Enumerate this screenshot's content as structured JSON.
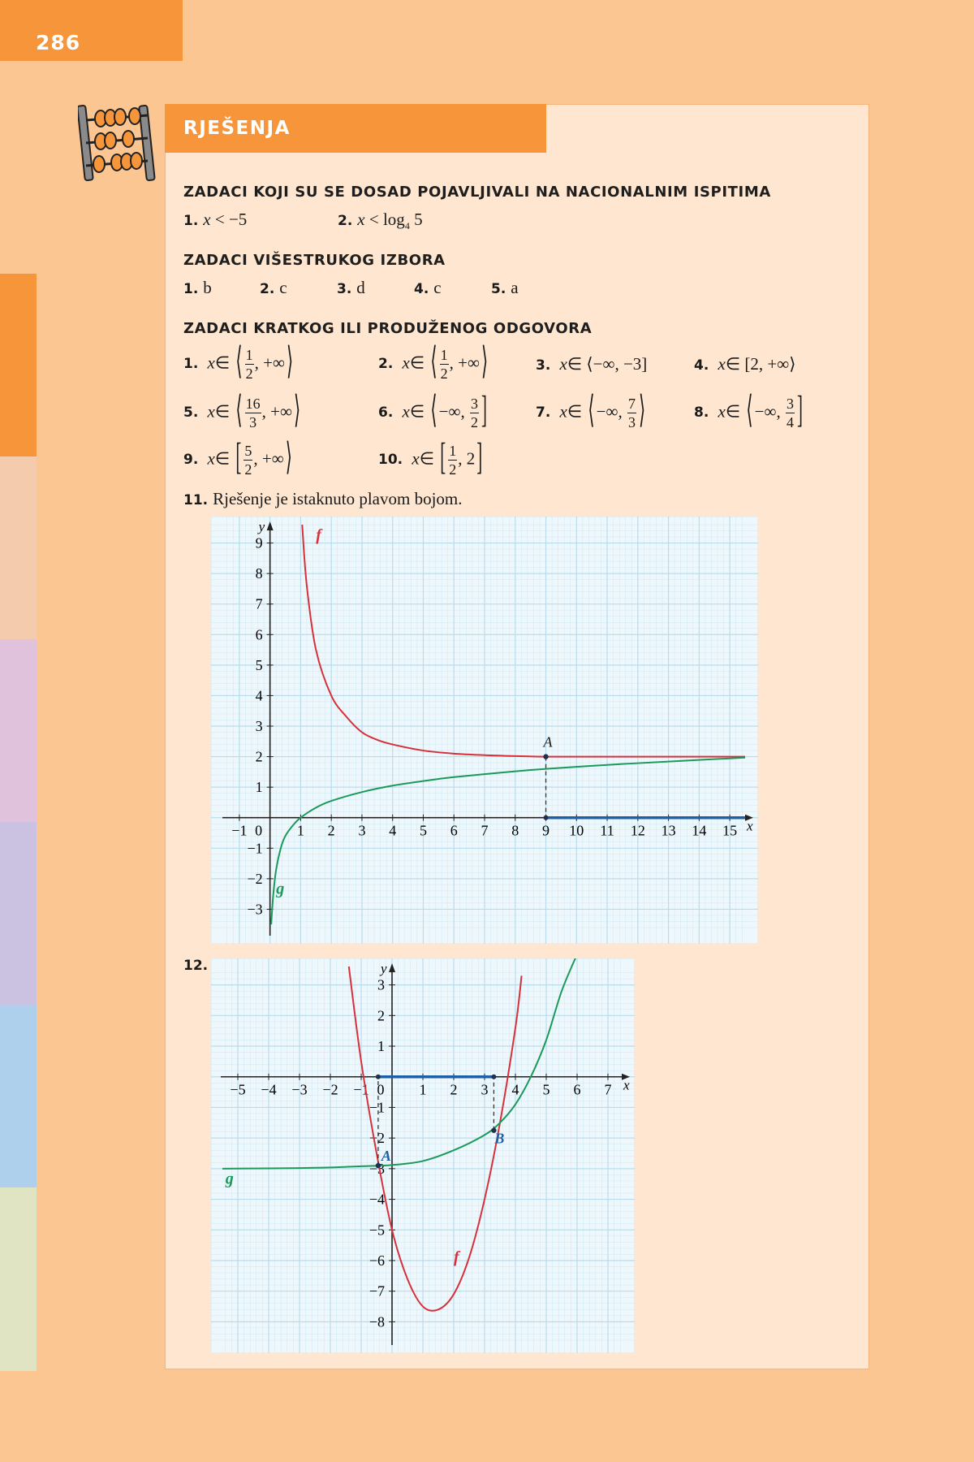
{
  "page_number": "286",
  "title": "RJEŠENJA",
  "sections": {
    "national": {
      "heading": "ZADACI KOJI SU SE DOSAD POJAVLJIVALI NA NACIONALNIM ISPITIMA",
      "a1_num": "1.",
      "a1_var": "x",
      "a1_rest": " < −5",
      "a2_num": "2.",
      "a2_var": "x",
      "a2_rest": " < log",
      "a2_base": "4",
      "a2_arg": " 5"
    },
    "multiple_choice": {
      "heading": "ZADACI VIŠESTRUKOG IZBORA",
      "items": [
        {
          "num": "1.",
          "answer": "b"
        },
        {
          "num": "2.",
          "answer": "c"
        },
        {
          "num": "3.",
          "answer": "d"
        },
        {
          "num": "4.",
          "answer": "c"
        },
        {
          "num": "5.",
          "answer": "a"
        }
      ]
    },
    "short_long": {
      "heading": "ZADACI KRATKOG ILI PRODUŽENOG ODGOVORA",
      "var": "x",
      "in": "∈",
      "items": {
        "q1": {
          "num": "1.",
          "open": "⟨",
          "top": "1",
          "bot": "2",
          "tail": ", +∞",
          "close": "⟩"
        },
        "q2": {
          "num": "2.",
          "open": "⟨",
          "top": "1",
          "bot": "2",
          "tail": ", +∞",
          "close": "⟩"
        },
        "q3": {
          "num": "3.",
          "open": "⟨",
          "body": "−∞, −3",
          "close": "]"
        },
        "q4": {
          "num": "4.",
          "open": "[",
          "body": "2, +∞",
          "close": "⟩"
        },
        "q5": {
          "num": "5.",
          "open": "⟨",
          "top": "16",
          "bot": "3",
          "tail": ", +∞",
          "close": "⟩"
        },
        "q6": {
          "num": "6.",
          "open": "⟨",
          "head": "−∞, ",
          "top": "3",
          "bot": "2",
          "close": "]"
        },
        "q7": {
          "num": "7.",
          "open": "⟨",
          "head": "−∞, ",
          "top": "7",
          "bot": "3",
          "close": "⟩"
        },
        "q8": {
          "num": "8.",
          "open": "⟨",
          "head": "−∞, ",
          "top": "3",
          "bot": "4",
          "close": "]"
        },
        "q9": {
          "num": "9.",
          "open": "[",
          "top": "5",
          "bot": "2",
          "tail": ", +∞",
          "close": "⟩"
        },
        "q10": {
          "num": "10.",
          "open": "[",
          "top": "1",
          "bot": "2",
          "tail": ", 2",
          "close": "]"
        }
      },
      "q11": {
        "num": "11.",
        "text": "Rješenje je istaknuto plavom bojom."
      },
      "q12": {
        "num": "12."
      }
    }
  },
  "chart_data": [
    {
      "type": "line",
      "x_ticks": [
        "−1",
        "0",
        "1",
        "2",
        "3",
        "4",
        "5",
        "6",
        "7",
        "8",
        "9",
        "10",
        "11",
        "12",
        "13",
        "14",
        "15"
      ],
      "y_ticks": [
        "−3",
        "−2",
        "−1",
        "1",
        "2",
        "3",
        "4",
        "5",
        "6",
        "7",
        "8",
        "9"
      ],
      "xlabel": "x",
      "ylabel": "y",
      "xlim": [
        -1.5,
        15.5
      ],
      "ylim": [
        -3.6,
        9.6
      ],
      "grid": true,
      "series": [
        {
          "name": "f",
          "color": "#d6303a",
          "x": [
            1.05,
            1.2,
            1.5,
            2,
            2.5,
            3,
            3.5,
            4,
            5,
            6,
            7,
            8,
            9,
            10,
            12,
            15.5
          ],
          "y": [
            9.6,
            7.6,
            5.5,
            4.0,
            3.3,
            2.8,
            2.55,
            2.4,
            2.2,
            2.1,
            2.05,
            2.02,
            2.0,
            2.0,
            2.0,
            2.0
          ]
        },
        {
          "name": "g",
          "color": "#1a9a5a",
          "x": [
            0.04,
            0.1,
            0.2,
            0.35,
            0.5,
            0.75,
            1,
            1.5,
            2,
            3,
            4,
            5,
            6,
            8,
            9,
            11,
            13,
            15.5
          ],
          "y": [
            -3.5,
            -2.6,
            -1.7,
            -1.0,
            -0.6,
            -0.25,
            0,
            0.33,
            0.55,
            0.84,
            1.05,
            1.2,
            1.33,
            1.52,
            1.6,
            1.73,
            1.84,
            1.97
          ]
        }
      ],
      "annotations": [
        {
          "label": "A",
          "x": 9,
          "y": 2
        },
        {
          "label": "solution_segment",
          "from": 9,
          "to": 15.5,
          "color": "#1f5fa6"
        }
      ]
    },
    {
      "type": "line",
      "x_ticks": [
        "−5",
        "−4",
        "−3",
        "−2",
        "−1",
        "0",
        "1",
        "2",
        "3",
        "4",
        "5",
        "6",
        "7"
      ],
      "y_ticks": [
        "−8",
        "−7",
        "−6",
        "−5",
        "−4",
        "−3",
        "−2",
        "−1",
        "1",
        "2",
        "3"
      ],
      "xlabel": "x",
      "ylabel": "y",
      "xlim": [
        -5.5,
        7.5
      ],
      "ylim": [
        -8.6,
        3.6
      ],
      "grid": true,
      "series": [
        {
          "name": "f",
          "color": "#d6303a",
          "x": [
            -1.4,
            -1,
            -0.5,
            0,
            0.5,
            1,
            1.5,
            2,
            2.5,
            3,
            3.5,
            4,
            4.2
          ],
          "y": [
            3.6,
            0.5,
            -2.5,
            -5,
            -6.6,
            -7.5,
            -7.6,
            -7.1,
            -5.9,
            -4.0,
            -1.5,
            1.6,
            3.3
          ]
        },
        {
          "name": "g",
          "color": "#1a9a5a",
          "x": [
            -5.5,
            -4,
            -3,
            -2,
            -1,
            0,
            1,
            2,
            3,
            3.5,
            4,
            4.5,
            5,
            5.5,
            6
          ],
          "y": [
            -3.0,
            -2.99,
            -2.98,
            -2.96,
            -2.92,
            -2.88,
            -2.75,
            -2.4,
            -1.9,
            -1.5,
            -0.9,
            0,
            1.2,
            2.8,
            4.0
          ]
        }
      ],
      "annotations": [
        {
          "label": "A",
          "x": -0.45,
          "y": -2.9
        },
        {
          "label": "B",
          "x": 3.3,
          "y": -1.75
        },
        {
          "label": "solution_segment",
          "from": -0.45,
          "to": 3.3,
          "color": "#1f5fa6"
        }
      ]
    }
  ],
  "colors": {
    "page_bg": "#fcc693",
    "accent": "#f6953a",
    "panel": "#fee6d0",
    "grid": "#b9dcec",
    "solution": "#1f5fa6"
  }
}
